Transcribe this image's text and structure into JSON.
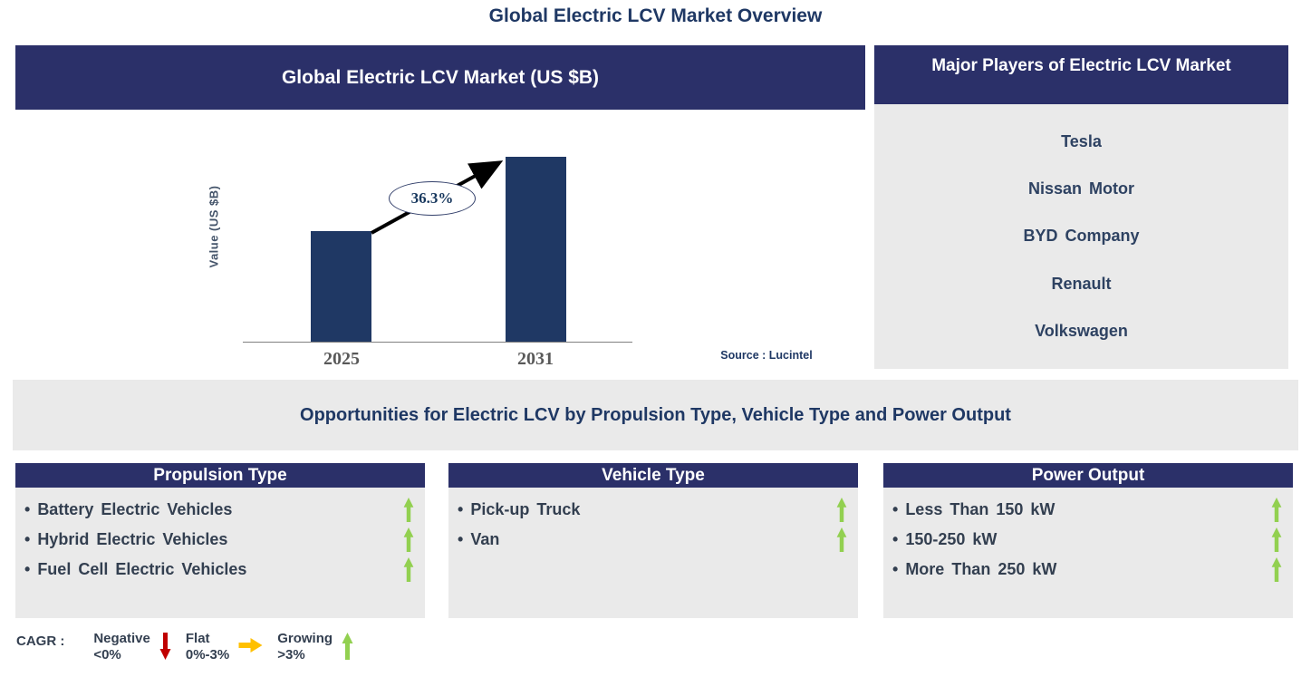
{
  "page_title": "Global Electric LCV Market Overview",
  "market_chart": {
    "header": "Global Electric LCV Market (US $B)",
    "source": "Source : Lucintel"
  },
  "chart_data": {
    "type": "bar",
    "title": "Global Electric LCV Market (US $B)",
    "categories": [
      "2025",
      "2031"
    ],
    "values": [
      0.6,
      1.0
    ],
    "values_note": "relative bar heights; no numeric axis scale shown",
    "xlabel": "",
    "ylabel": "Value (US $B)",
    "annotation": "36.3%",
    "annotation_meaning": "CAGR between 2025 and 2031",
    "grid": false,
    "legend": false,
    "bar_color": "#1f3864"
  },
  "major_players": {
    "header": "Major Players of Electric LCV Market",
    "companies": [
      "Tesla",
      "Nissan Motor",
      "BYD Company",
      "Renault",
      "Volkswagen"
    ]
  },
  "opportunities_title": "Opportunities for Electric LCV by Propulsion Type, Vehicle Type and Power Output",
  "opportunity_panels": [
    {
      "header": "Propulsion Type",
      "items": [
        {
          "label": "Battery Electric Vehicles",
          "trend": "growing"
        },
        {
          "label": "Hybrid Electric Vehicles",
          "trend": "growing"
        },
        {
          "label": "Fuel Cell Electric Vehicles",
          "trend": "growing"
        }
      ]
    },
    {
      "header": "Vehicle Type",
      "items": [
        {
          "label": "Pick-up Truck",
          "trend": "growing"
        },
        {
          "label": "Van",
          "trend": "growing"
        }
      ]
    },
    {
      "header": "Power Output",
      "items": [
        {
          "label": "Less Than 150 kW",
          "trend": "growing"
        },
        {
          "label": "150-250 kW",
          "trend": "growing"
        },
        {
          "label": "More Than 250 kW",
          "trend": "growing"
        }
      ]
    }
  ],
  "legend": {
    "label": "CAGR :",
    "entries": [
      {
        "name": "Negative",
        "range": "<0%",
        "direction": "down",
        "color": "#c00000"
      },
      {
        "name": "Flat",
        "range": "0%-3%",
        "direction": "right",
        "color": "#ffc000"
      },
      {
        "name": "Growing",
        "range": ">3%",
        "direction": "up",
        "color": "#92d050"
      }
    ]
  },
  "colors": {
    "header_navy": "#2b3069",
    "bar_navy": "#1f3864",
    "panel_gray": "#eaeaea",
    "title_text": "#1f3864",
    "item_text": "#333f50",
    "growing_green": "#92d050",
    "negative_red": "#c00000",
    "flat_amber": "#ffc000"
  }
}
